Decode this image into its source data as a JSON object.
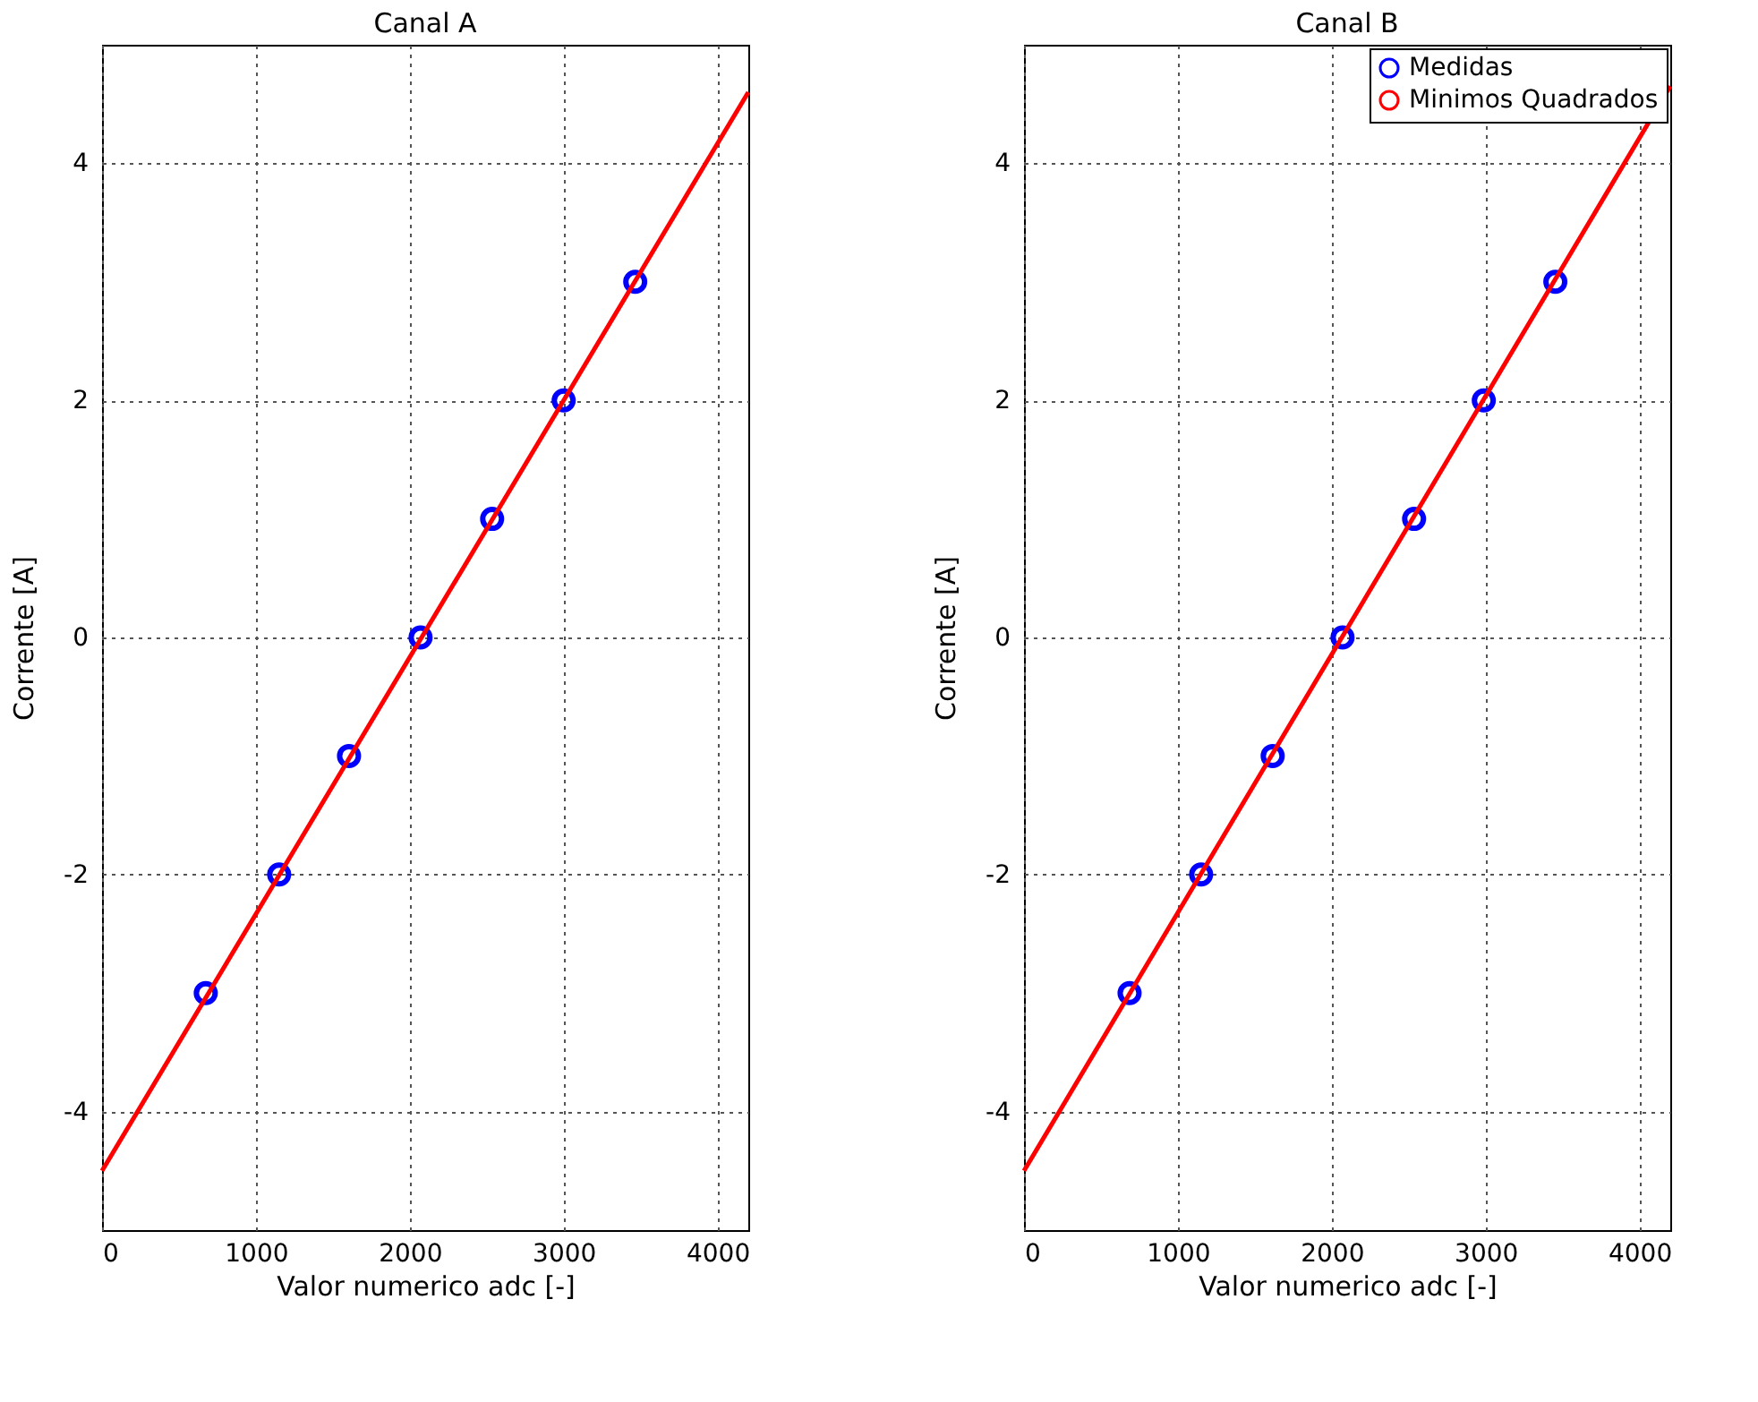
{
  "chart_data": [
    {
      "type": "scatter",
      "title": "Canal A",
      "xlabel": "Valor numerico adc [-]",
      "ylabel": "Corrente [A]",
      "xlim": [
        0,
        4200
      ],
      "ylim": [
        -5,
        5
      ],
      "xticks": [
        0,
        1000,
        2000,
        3000,
        4000
      ],
      "yticks": [
        -4,
        -2,
        0,
        2,
        4
      ],
      "grid": true,
      "legend": false,
      "series": [
        {
          "color": "#0000ff",
          "marker": "circle",
          "x": [
            674,
            1151,
            1605,
            2070,
            2535,
            3000,
            3465
          ],
          "values": [
            -3,
            -2,
            -1,
            0,
            1,
            2,
            3
          ]
        },
        {
          "type": "line",
          "color": "#ff0000",
          "x": [
            0,
            4200
          ],
          "values": [
            -4.5,
            4.6
          ]
        }
      ]
    },
    {
      "type": "scatter",
      "title": "Canal B",
      "xlabel": "Valor numerico adc [-]",
      "ylabel": "Corrente [A]",
      "xlim": [
        0,
        4200
      ],
      "ylim": [
        -5,
        5
      ],
      "xticks": [
        0,
        1000,
        2000,
        3000,
        4000
      ],
      "yticks": [
        -4,
        -2,
        0,
        2,
        4
      ],
      "grid": true,
      "legend": "top right",
      "series": [
        {
          "name": "Medidas",
          "color": "#0000ff",
          "marker": "circle",
          "x": [
            686,
            1151,
            1616,
            2070,
            2535,
            2988,
            3453
          ],
          "values": [
            -3,
            -2,
            -1,
            0,
            1,
            2,
            3
          ]
        },
        {
          "type": "line",
          "name": "Minimos Quadrados",
          "color": "#ff0000",
          "x": [
            0,
            4200
          ],
          "values": [
            -4.5,
            4.65
          ]
        }
      ]
    }
  ]
}
